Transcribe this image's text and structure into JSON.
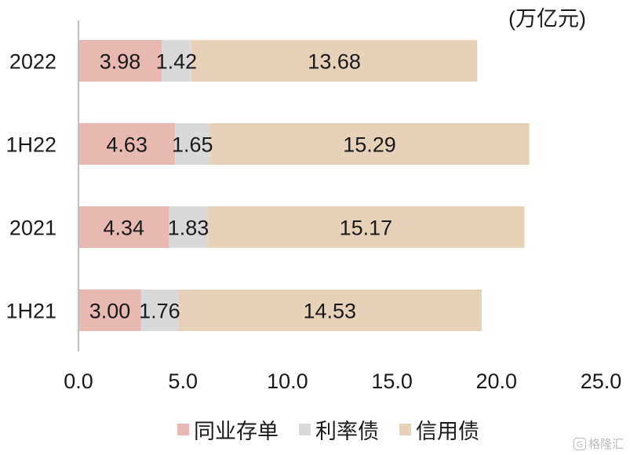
{
  "unit_label": "(万亿元)",
  "colors": {
    "interbank_cd": "#e8b9b2",
    "rate_bond": "#d9d9d9",
    "credit_bond": "#e6d2b8"
  },
  "chart_data": {
    "type": "bar",
    "orientation": "horizontal",
    "stacked": true,
    "categories": [
      "2022",
      "1H22",
      "2021",
      "1H21"
    ],
    "series": [
      {
        "name": "同业存单",
        "values": [
          3.98,
          4.63,
          4.34,
          3.0
        ],
        "labels": [
          "3.98",
          "4.63",
          "4.34",
          "3.00"
        ]
      },
      {
        "name": "利率债",
        "values": [
          1.42,
          1.65,
          1.83,
          1.76
        ],
        "labels": [
          "1.42",
          "1.65",
          "1.83",
          "1.76"
        ]
      },
      {
        "name": "信用债",
        "values": [
          13.68,
          15.29,
          15.17,
          14.53
        ],
        "labels": [
          "13.68",
          "15.29",
          "15.17",
          "14.53"
        ]
      }
    ],
    "xlim": [
      0,
      25
    ],
    "x_ticks": [
      "0.0",
      "5.0",
      "10.0",
      "15.0",
      "20.0",
      "25.0"
    ],
    "grid": false,
    "legend_position": "bottom"
  },
  "watermark": {
    "icon": "G",
    "text": "格隆汇"
  }
}
